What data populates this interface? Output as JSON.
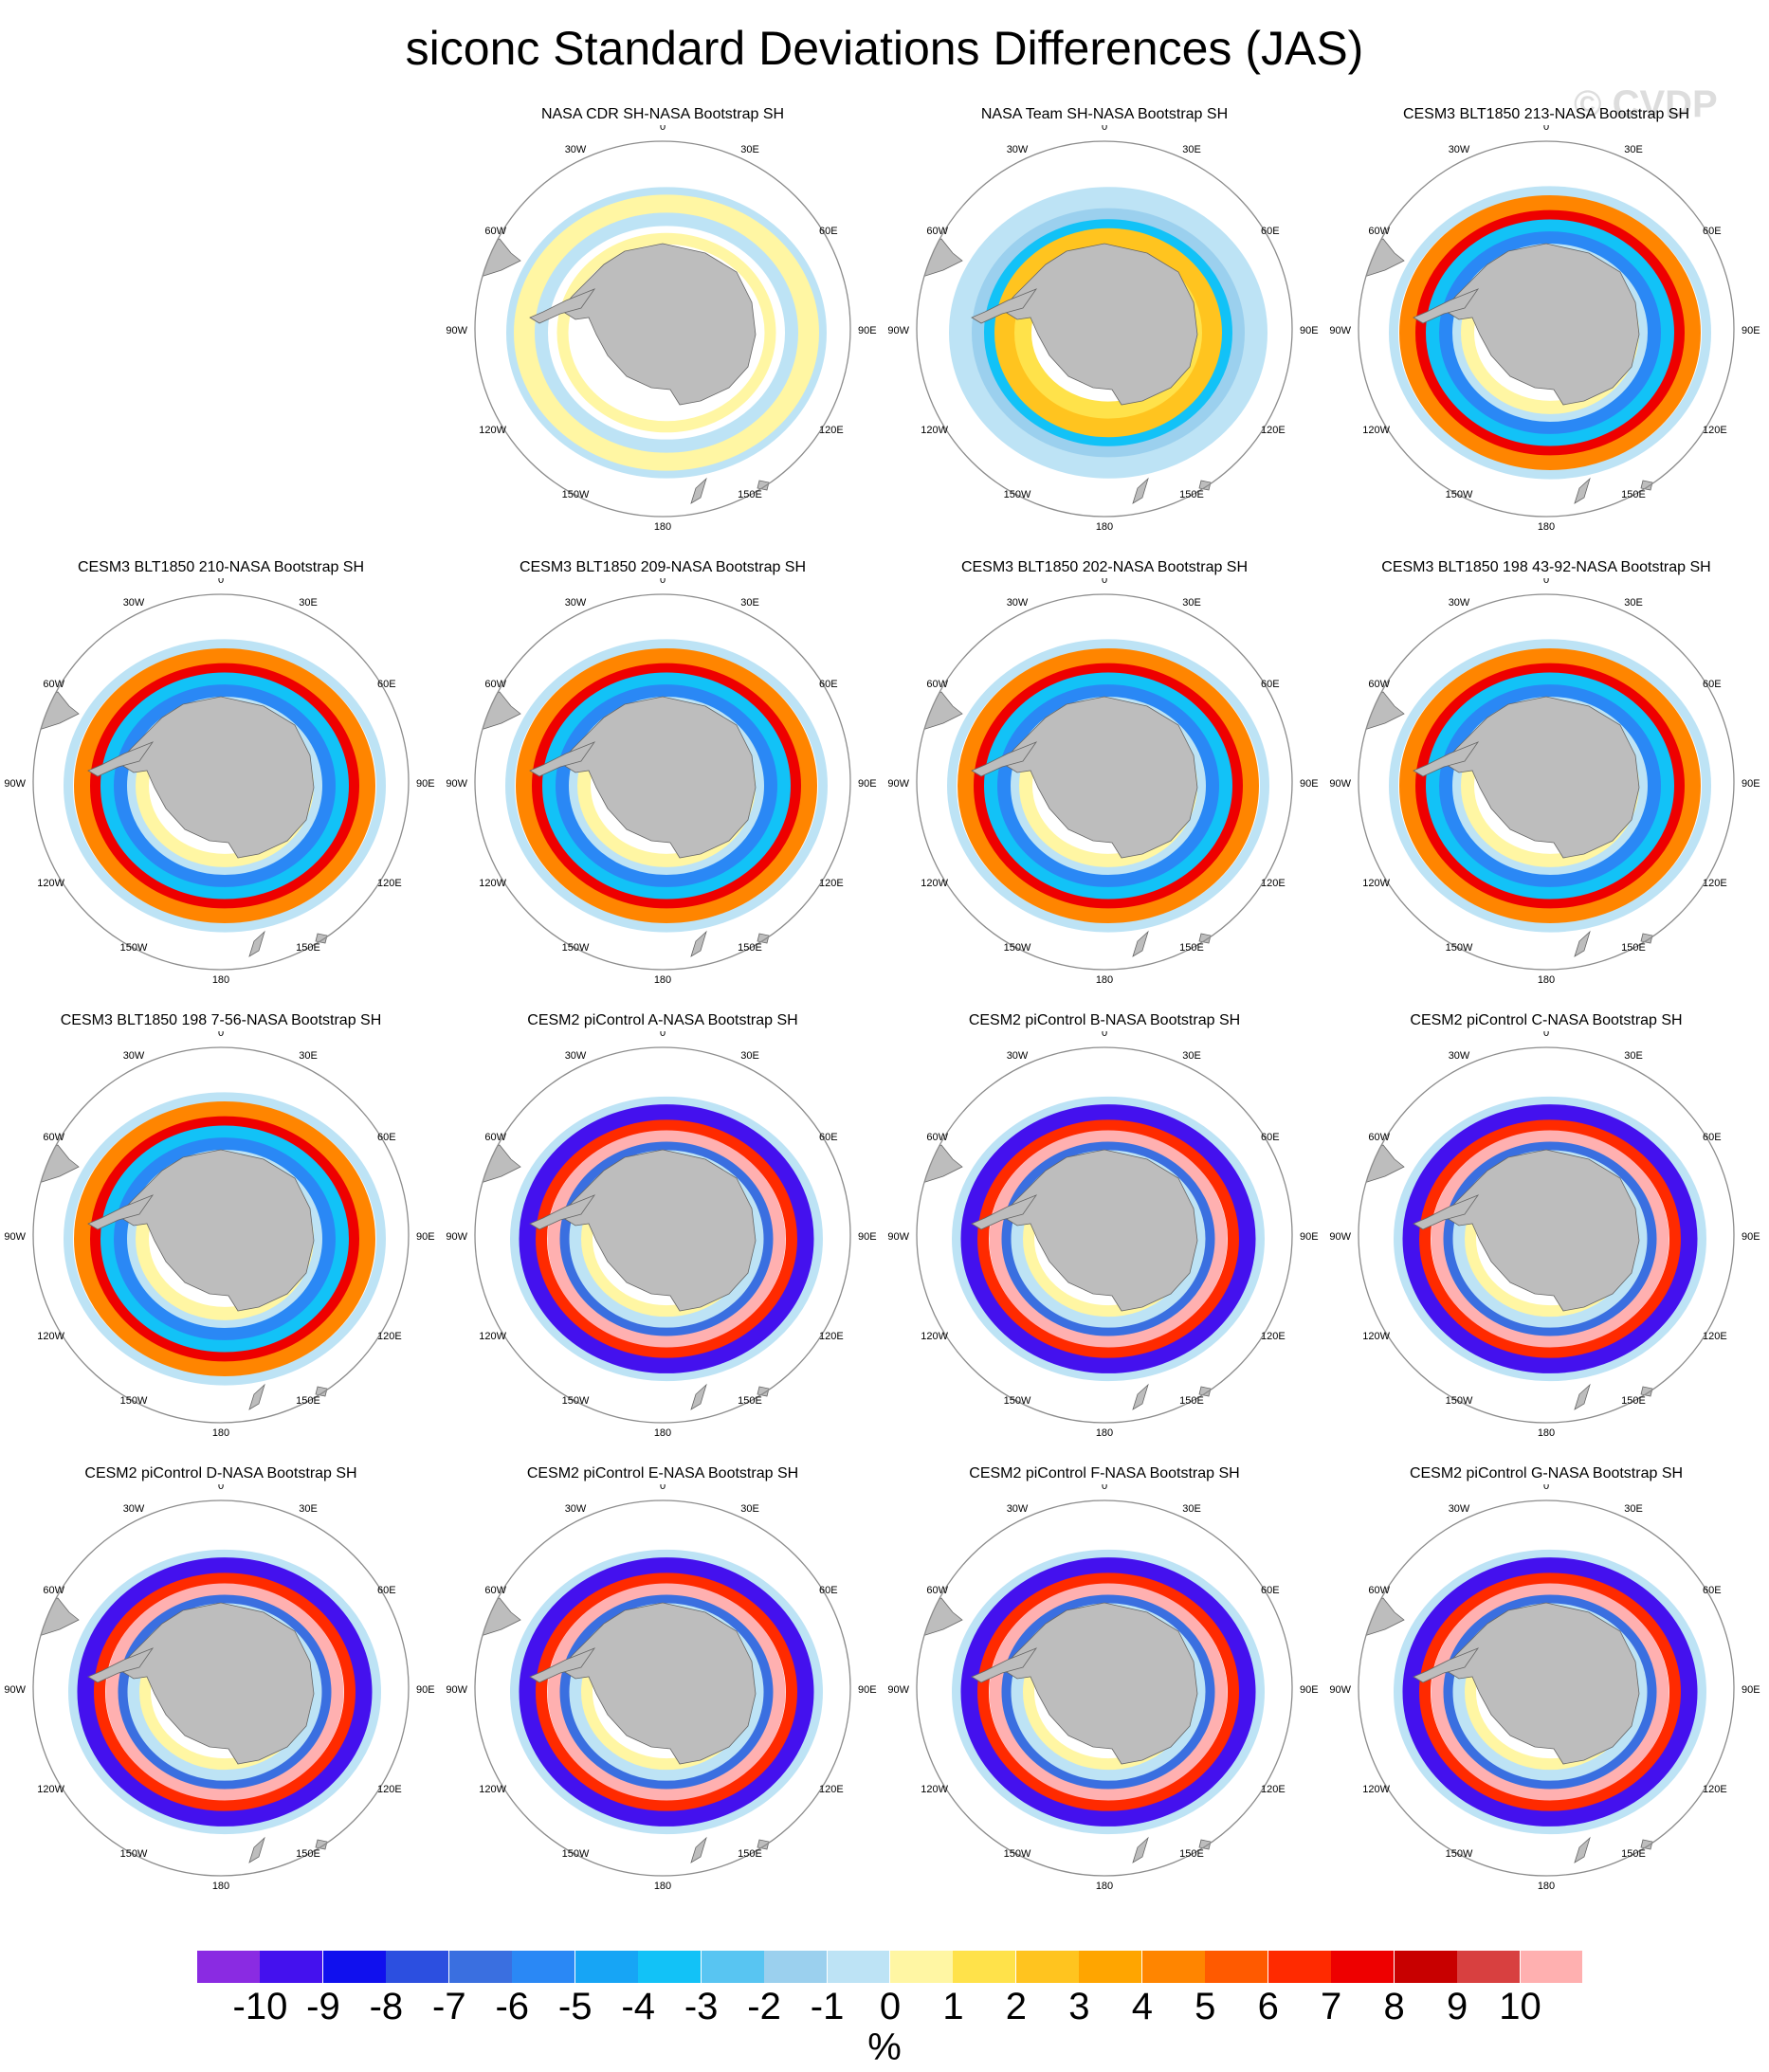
{
  "figure": {
    "title": "siconc Standard Deviations Differences (JAS)",
    "watermark": "© CVDP"
  },
  "map_labels": {
    "top": "0",
    "top_left": "30W",
    "top_right": "30E",
    "upper_left": "60W",
    "upper_right": "60E",
    "left": "90W",
    "right": "90E",
    "lower_left": "120W",
    "lower_right": "120E",
    "bottom_left": "150W",
    "bottom_right": "150E",
    "bottom": "180"
  },
  "panels": [
    {
      "title": "NASA CDR SH-NASA Bootstrap SH",
      "pattern": "cdr"
    },
    {
      "title": "NASA Team SH-NASA Bootstrap SH",
      "pattern": "team"
    },
    {
      "title": "CESM3 BLT1850 213-NASA Bootstrap SH",
      "pattern": "cesm3"
    },
    {
      "title": "CESM3 BLT1850 210-NASA Bootstrap SH",
      "pattern": "cesm3"
    },
    {
      "title": "CESM3 BLT1850 209-NASA Bootstrap SH",
      "pattern": "cesm3"
    },
    {
      "title": "CESM3 BLT1850 202-NASA Bootstrap SH",
      "pattern": "cesm3"
    },
    {
      "title": "CESM3 BLT1850 198 43-92-NASA Bootstrap SH",
      "pattern": "cesm3"
    },
    {
      "title": "CESM3 BLT1850 198 7-56-NASA Bootstrap SH",
      "pattern": "cesm3"
    },
    {
      "title": "CESM2 piControl A-NASA Bootstrap SH",
      "pattern": "cesm2"
    },
    {
      "title": "CESM2 piControl B-NASA Bootstrap SH",
      "pattern": "cesm2"
    },
    {
      "title": "CESM2 piControl C-NASA Bootstrap SH",
      "pattern": "cesm2"
    },
    {
      "title": "CESM2 piControl D-NASA Bootstrap SH",
      "pattern": "cesm2"
    },
    {
      "title": "CESM2 piControl E-NASA Bootstrap SH",
      "pattern": "cesm2"
    },
    {
      "title": "CESM2 piControl F-NASA Bootstrap SH",
      "pattern": "cesm2"
    },
    {
      "title": "CESM2 piControl G-NASA Bootstrap SH",
      "pattern": "cesm2"
    }
  ],
  "colorbar": {
    "unit": "%",
    "labels": [
      "-10",
      "-9",
      "-8",
      "-7",
      "-6",
      "-5",
      "-4",
      "-3",
      "-2",
      "-1",
      "0",
      "1",
      "2",
      "3",
      "4",
      "5",
      "6",
      "7",
      "8",
      "9",
      "10"
    ],
    "colors": [
      "#8a2be2",
      "#4411ee",
      "#1010ee",
      "#2c4fe0",
      "#3a6fe0",
      "#2a88f5",
      "#17a5f5",
      "#12c2f7",
      "#58c5f2",
      "#9bd0ee",
      "#bde3f5",
      "#fff6a3",
      "#ffe24a",
      "#ffc41f",
      "#ffa500",
      "#ff8500",
      "#ff5a00",
      "#ff2a00",
      "#ee0000",
      "#c80000",
      "#d84040",
      "#ffb0b0"
    ]
  },
  "style_colors": {
    "land": "#bdbdbd",
    "land_edge": "#666666",
    "circle": "#8c8c8c"
  }
}
